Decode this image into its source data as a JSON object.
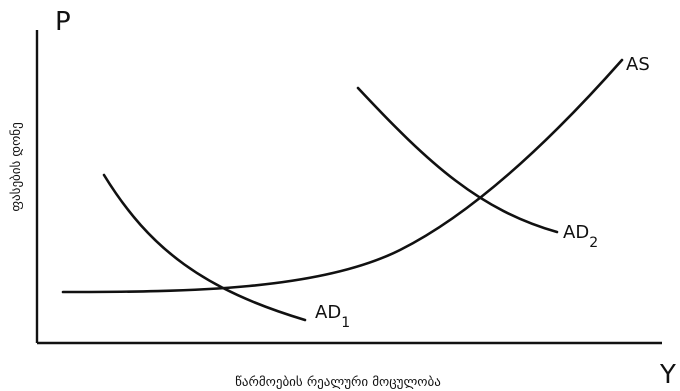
{
  "diagram": {
    "y_axis_symbol": "P",
    "x_axis_symbol": "Y",
    "y_axis_title": "ფასების დონე",
    "x_axis_title": "წარმოების რეალური მოცულობა",
    "curves": {
      "as": {
        "label": "AS"
      },
      "ad1": {
        "label": "AD",
        "subscript": "1"
      },
      "ad2": {
        "label": "AD",
        "subscript": "2"
      }
    }
  }
}
